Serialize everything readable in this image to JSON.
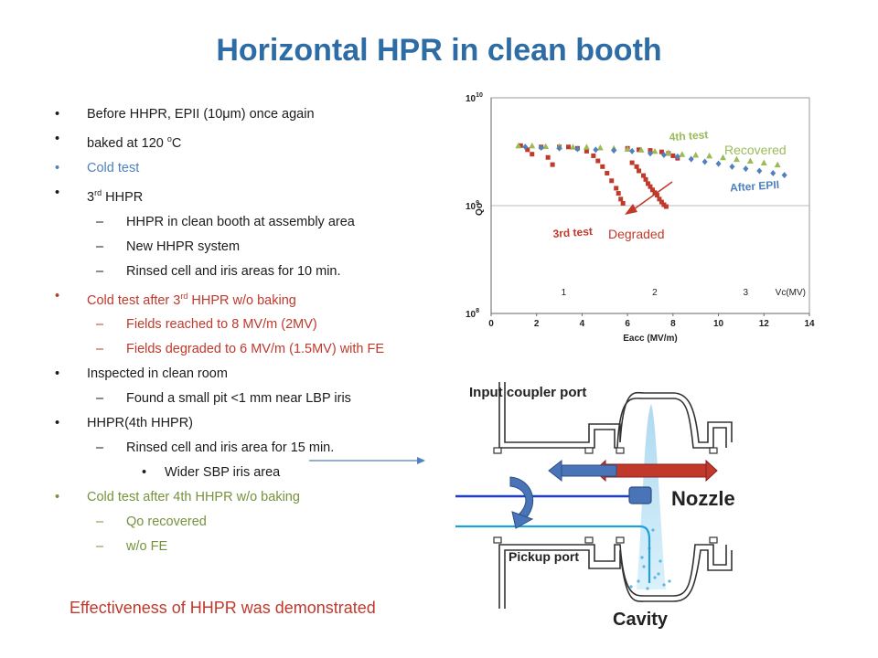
{
  "slide": {
    "title": "Horizontal HPR in clean booth",
    "conclusion": "Effectiveness of HHPR was demonstrated"
  },
  "bullets": [
    {
      "level": 1,
      "color": "black",
      "parts": [
        {
          "t": "Before HHPR, EPII (10μm) once again"
        }
      ]
    },
    {
      "level": 1,
      "color": "black",
      "parts": [
        {
          "t": "baked at 120 "
        },
        {
          "t": "o",
          "sup": true
        },
        {
          "t": "C"
        }
      ]
    },
    {
      "level": 1,
      "color": "blue",
      "parts": [
        {
          "t": "Cold test"
        }
      ]
    },
    {
      "level": 1,
      "color": "black",
      "parts": [
        {
          "t": "3"
        },
        {
          "t": "rd",
          "sup": true
        },
        {
          "t": " HHPR"
        }
      ]
    },
    {
      "level": 2,
      "color": "black",
      "parts": [
        {
          "t": " HHPR in clean booth at assembly area"
        }
      ]
    },
    {
      "level": 2,
      "color": "black",
      "parts": [
        {
          "t": "New HHPR system"
        }
      ]
    },
    {
      "level": 2,
      "color": "black",
      "parts": [
        {
          "t": "Rinsed cell and iris areas for 10 min."
        }
      ]
    },
    {
      "level": 1,
      "color": "red",
      "parts": [
        {
          "t": "Cold test after 3"
        },
        {
          "t": "rd",
          "sup": true
        },
        {
          "t": " HHPR w/o baking"
        }
      ]
    },
    {
      "level": 2,
      "color": "red",
      "parts": [
        {
          "t": "Fields reached to 8 MV/m (2MV)"
        }
      ]
    },
    {
      "level": 2,
      "color": "red",
      "parts": [
        {
          "t": "Fields degraded to 6 MV/m (1.5MV) with FE"
        }
      ]
    },
    {
      "level": 1,
      "color": "black",
      "parts": [
        {
          "t": "Inspected in clean room"
        }
      ]
    },
    {
      "level": 2,
      "color": "black",
      "parts": [
        {
          "t": " Found a small pit <1 mm near LBP iris"
        }
      ]
    },
    {
      "level": 1,
      "color": "black",
      "parts": [
        {
          "t": "HHPR(4th HHPR)"
        }
      ]
    },
    {
      "level": 2,
      "color": "black",
      "parts": [
        {
          "t": "Rinsed  cell and iris area for 15 min."
        }
      ]
    },
    {
      "level": 3,
      "color": "black",
      "parts": [
        {
          "t": "Wider SBP iris area"
        }
      ]
    },
    {
      "level": 1,
      "color": "green",
      "parts": [
        {
          "t": "Cold test after 4th HHPR w/o baking"
        }
      ]
    },
    {
      "level": 2,
      "color": "green",
      "parts": [
        {
          "t": "Qo  recovered"
        }
      ]
    },
    {
      "level": 2,
      "color": "green",
      "parts": [
        {
          "t": "w/o FE"
        }
      ]
    }
  ],
  "colors": {
    "black": "#1b1b1b",
    "blue": "#4f81bd",
    "red": "#c0392b",
    "green": "#76923c",
    "title": "#2e6ca5"
  },
  "chart_data": {
    "type": "scatter",
    "title": "",
    "xlabel": "Eacc (MV/m)",
    "ylabel": "Qo",
    "xlim": [
      0,
      14
    ],
    "ylim_log10": [
      8,
      10
    ],
    "yscale": "log",
    "x_ticks": [
      "0",
      "2",
      "4",
      "6",
      "8",
      "10",
      "12",
      "14"
    ],
    "y_ticks": [
      {
        "base": "10",
        "exp": "8",
        "v": 8
      },
      {
        "base": "10",
        "exp": "9",
        "v": 9
      },
      {
        "base": "10",
        "exp": "10",
        "v": 10
      }
    ],
    "secondary_axis_label": "Vc(MV)",
    "secondary_ticks": [
      {
        "label": "1",
        "x": 4
      },
      {
        "label": "2",
        "x": 8
      },
      {
        "label": "3",
        "x": 12
      }
    ],
    "grid": true,
    "series": [
      {
        "name": "3rd test",
        "marker": "square",
        "color": "#c0392b",
        "points": [
          [
            1.3,
            3600000000.0
          ],
          [
            1.6,
            3300000000.0
          ],
          [
            1.8,
            3000000000.0
          ],
          [
            2.2,
            3500000000.0
          ],
          [
            2.5,
            2800000000.0
          ],
          [
            2.7,
            2400000000.0
          ],
          [
            3.0,
            3500000000.0
          ],
          [
            3.4,
            3500000000.0
          ],
          [
            3.8,
            3400000000.0
          ],
          [
            4.2,
            3200000000.0
          ],
          [
            4.5,
            2900000000.0
          ],
          [
            4.7,
            2600000000.0
          ],
          [
            4.9,
            2300000000.0
          ],
          [
            5.1,
            2000000000.0
          ],
          [
            5.3,
            1700000000.0
          ],
          [
            5.5,
            1450000000.0
          ],
          [
            5.6,
            1300000000.0
          ],
          [
            5.7,
            1150000000.0
          ],
          [
            5.8,
            1050000000.0
          ],
          [
            6.0,
            3400000000.0
          ],
          [
            6.5,
            3300000000.0
          ],
          [
            7.0,
            3250000000.0
          ],
          [
            7.5,
            3150000000.0
          ],
          [
            7.8,
            3050000000.0
          ],
          [
            8.0,
            2900000000.0
          ],
          [
            8.2,
            2750000000.0
          ],
          [
            6.2,
            2500000000.0
          ],
          [
            6.4,
            2300000000.0
          ],
          [
            6.5,
            2100000000.0
          ],
          [
            6.7,
            1900000000.0
          ],
          [
            6.8,
            1750000000.0
          ],
          [
            6.9,
            1600000000.0
          ],
          [
            7.0,
            1500000000.0
          ],
          [
            7.1,
            1400000000.0
          ],
          [
            7.2,
            1320000000.0
          ],
          [
            7.3,
            1250000000.0
          ],
          [
            7.4,
            1150000000.0
          ],
          [
            7.5,
            1080000000.0
          ],
          [
            7.6,
            1020000000.0
          ],
          [
            7.7,
            980000000.0
          ]
        ]
      },
      {
        "name": "4th test",
        "marker": "triangle",
        "color": "#9bbb59",
        "points": [
          [
            1.2,
            3600000000.0
          ],
          [
            1.8,
            3600000000.0
          ],
          [
            2.4,
            3550000000.0
          ],
          [
            3.0,
            3550000000.0
          ],
          [
            3.6,
            3500000000.0
          ],
          [
            4.2,
            3500000000.0
          ],
          [
            4.8,
            3450000000.0
          ],
          [
            5.4,
            3400000000.0
          ],
          [
            6.0,
            3350000000.0
          ],
          [
            6.6,
            3300000000.0
          ],
          [
            7.2,
            3200000000.0
          ],
          [
            7.8,
            3100000000.0
          ],
          [
            8.4,
            3000000000.0
          ],
          [
            9.0,
            2950000000.0
          ],
          [
            9.6,
            2900000000.0
          ],
          [
            10.2,
            2800000000.0
          ],
          [
            10.8,
            2700000000.0
          ],
          [
            11.4,
            2600000000.0
          ],
          [
            12.0,
            2500000000.0
          ],
          [
            12.6,
            2400000000.0
          ]
        ]
      },
      {
        "name": "After EPII",
        "marker": "diamond",
        "color": "#4f81bd",
        "points": [
          [
            1.5,
            3500000000.0
          ],
          [
            2.2,
            3450000000.0
          ],
          [
            3.0,
            3400000000.0
          ],
          [
            3.8,
            3350000000.0
          ],
          [
            4.6,
            3300000000.0
          ],
          [
            5.4,
            3250000000.0
          ],
          [
            6.2,
            3200000000.0
          ],
          [
            7.0,
            3050000000.0
          ],
          [
            7.6,
            2950000000.0
          ],
          [
            8.2,
            2850000000.0
          ],
          [
            8.8,
            2700000000.0
          ],
          [
            9.4,
            2550000000.0
          ],
          [
            10.0,
            2450000000.0
          ],
          [
            10.6,
            2300000000.0
          ],
          [
            11.2,
            2200000000.0
          ],
          [
            11.8,
            2100000000.0
          ],
          [
            12.4,
            2000000000.0
          ],
          [
            12.9,
            1920000000.0
          ]
        ]
      }
    ],
    "annotations": [
      {
        "text": "Recovered",
        "color": "#9bbb59"
      },
      {
        "text": "Degraded",
        "color": "#c0392b"
      }
    ]
  },
  "diagram": {
    "input_coupler_port": "Input coupler port",
    "pickup_port": "Pickup port",
    "nozzle": "Nozzle",
    "cavity": "Cavity"
  }
}
